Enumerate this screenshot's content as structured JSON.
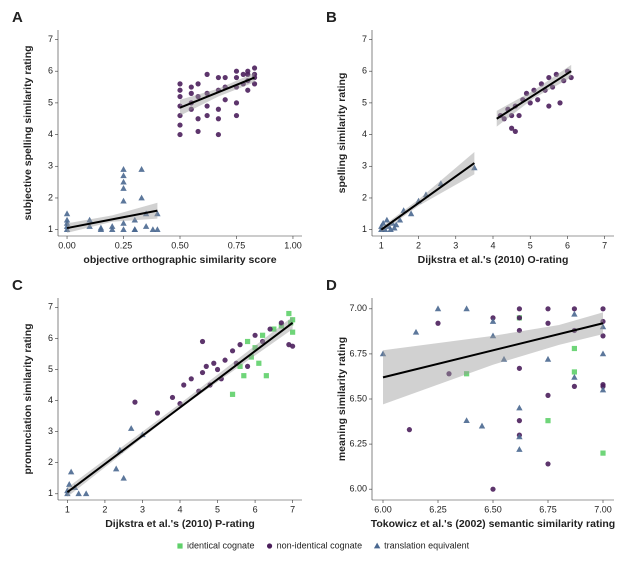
{
  "chart_data": [
    {
      "type": "scatter",
      "label": "A",
      "xlabel": "objective orthographic similarity score",
      "ylabel": "subjective spelling similarity rating",
      "xlim": [
        -0.04,
        1.04
      ],
      "ylim": [
        0.8,
        7.3
      ],
      "xticks": [
        {
          "value": 0,
          "label": "0.00"
        },
        0.25,
        {
          "value": 0.5,
          "label": "0.50"
        },
        0.75,
        {
          "value": 1,
          "label": "1.00"
        }
      ],
      "yticks": [
        1,
        2,
        3,
        4,
        5,
        6,
        7
      ],
      "series": [
        {
          "color": "#4a6890",
          "marker": "triangle",
          "x": [
            0,
            0,
            0,
            0,
            0,
            0.1,
            0.1,
            0.15,
            0.15,
            0.2,
            0.2,
            0.25,
            0.25,
            0.25,
            0.25,
            0.25,
            0.25,
            0.25,
            0.3,
            0.3,
            0.3,
            0.33,
            0.33,
            0.35,
            0.35,
            0.38,
            0.4,
            0.4
          ],
          "y": [
            1.0,
            1.1,
            1.2,
            1.3,
            1.5,
            1.1,
            1.3,
            1.0,
            1.05,
            1.0,
            1.1,
            1.0,
            2.9,
            2.7,
            2.5,
            2.3,
            1.9,
            1.2,
            1.0,
            1.0,
            1.3,
            2.0,
            2.9,
            1.1,
            1.5,
            1.0,
            1.0,
            1.5
          ]
        },
        {
          "color": "#4b1f5c",
          "marker": "circle",
          "x": [
            0.5,
            0.5,
            0.5,
            0.5,
            0.5,
            0.5,
            0.5,
            0.55,
            0.55,
            0.55,
            0.55,
            0.58,
            0.58,
            0.58,
            0.58,
            0.62,
            0.62,
            0.62,
            0.62,
            0.67,
            0.67,
            0.67,
            0.67,
            0.67,
            0.7,
            0.7,
            0.7,
            0.75,
            0.75,
            0.75,
            0.75,
            0.75,
            0.78,
            0.78,
            0.8,
            0.8,
            0.8,
            0.8,
            0.83,
            0.83,
            0.83,
            0.83
          ],
          "y": [
            4.0,
            4.3,
            4.6,
            4.9,
            5.2,
            5.4,
            5.6,
            4.8,
            5.0,
            5.3,
            5.5,
            4.1,
            4.5,
            5.2,
            5.6,
            4.6,
            4.9,
            5.3,
            5.9,
            4.0,
            4.5,
            4.8,
            5.4,
            5.8,
            5.1,
            5.5,
            5.8,
            4.6,
            5.0,
            5.5,
            5.8,
            6.0,
            5.6,
            5.9,
            5.4,
            5.7,
            5.9,
            6.0,
            5.6,
            5.8,
            5.9,
            6.1
          ]
        }
      ],
      "fits": [
        {
          "x": [
            0,
            0.4
          ],
          "y": [
            1.05,
            1.6
          ],
          "band": {
            "x": [
              0,
              0.2,
              0.4
            ],
            "lower": [
              0.9,
              1.25,
              1.35
            ],
            "upper": [
              1.2,
              1.45,
              1.85
            ]
          }
        },
        {
          "x": [
            0.5,
            0.83
          ],
          "y": [
            4.85,
            5.8
          ],
          "band": {
            "x": [
              0.5,
              0.67,
              0.83
            ],
            "lower": [
              4.6,
              5.2,
              5.65
            ],
            "upper": [
              5.1,
              5.45,
              5.95
            ]
          }
        }
      ]
    },
    {
      "type": "scatter",
      "label": "B",
      "xlabel": "Dijkstra et al.'s (2010) O-rating",
      "ylabel": "spelling similarity rating",
      "xlim": [
        0.75,
        7.25
      ],
      "ylim": [
        0.8,
        7.3
      ],
      "xticks": [
        1,
        2,
        3,
        4,
        5,
        6,
        7
      ],
      "yticks": [
        1,
        2,
        3,
        4,
        5,
        6,
        7
      ],
      "series": [
        {
          "color": "#4a6890",
          "marker": "triangle",
          "x": [
            1,
            1,
            1.05,
            1.1,
            1.15,
            1.2,
            1.25,
            1.3,
            1.35,
            1.4,
            1.5,
            1.6,
            1.8,
            2.0,
            2.2,
            2.6,
            3.5
          ],
          "y": [
            1.0,
            1.1,
            1.2,
            1.0,
            1.3,
            1.1,
            1.0,
            1.2,
            1.05,
            1.15,
            1.3,
            1.6,
            1.5,
            1.9,
            2.1,
            2.45,
            2.95
          ]
        },
        {
          "color": "#4b1f5c",
          "marker": "circle",
          "x": [
            4.2,
            4.3,
            4.4,
            4.5,
            4.5,
            4.6,
            4.7,
            4.8,
            4.9,
            5.0,
            5.1,
            5.2,
            5.3,
            5.4,
            5.5,
            5.6,
            5.7,
            5.8,
            5.9,
            6.0,
            6.1,
            5.5,
            4.6
          ],
          "y": [
            4.6,
            4.5,
            4.8,
            4.2,
            4.6,
            4.9,
            4.6,
            5.1,
            5.3,
            5.0,
            5.4,
            5.1,
            5.6,
            5.4,
            5.8,
            5.5,
            5.9,
            5.0,
            5.7,
            6.0,
            5.8,
            4.9,
            4.1
          ]
        }
      ],
      "fits": [
        {
          "x": [
            1,
            3.5
          ],
          "y": [
            1.0,
            3.1
          ],
          "band": {
            "x": [
              1,
              2,
              3.5
            ],
            "lower": [
              0.92,
              1.75,
              2.75
            ],
            "upper": [
              1.08,
              1.95,
              3.45
            ]
          }
        },
        {
          "x": [
            4.1,
            6.1
          ],
          "y": [
            4.5,
            6.0
          ],
          "band": {
            "x": [
              4.1,
              5.1,
              6.1
            ],
            "lower": [
              4.25,
              5.15,
              5.8
            ],
            "upper": [
              4.75,
              5.4,
              6.2
            ]
          }
        }
      ]
    },
    {
      "type": "scatter",
      "label": "C",
      "xlabel": "Dijkstra et al.'s (2010) P-rating",
      "ylabel": "pronunciation similarity rating",
      "xlim": [
        0.75,
        7.25
      ],
      "ylim": [
        0.8,
        7.3
      ],
      "xticks": [
        1,
        2,
        3,
        4,
        5,
        6,
        7
      ],
      "yticks": [
        1,
        2,
        3,
        4,
        5,
        6,
        7
      ],
      "series": [
        {
          "color": "#5fd06a",
          "marker": "square",
          "x": [
            5.4,
            5.6,
            5.7,
            5.8,
            5.9,
            6.0,
            6.1,
            6.2,
            6.3,
            6.5,
            6.7,
            6.9,
            7.0,
            7.0,
            6.95
          ],
          "y": [
            4.2,
            5.1,
            4.8,
            5.9,
            5.4,
            5.7,
            5.2,
            6.1,
            4.8,
            6.3,
            6.4,
            6.8,
            6.2,
            6.6,
            6.5
          ]
        },
        {
          "color": "#4b1f5c",
          "marker": "circle",
          "x": [
            2.8,
            3.4,
            3.8,
            4.0,
            4.1,
            4.3,
            4.5,
            4.6,
            4.7,
            4.8,
            4.9,
            5.0,
            5.1,
            5.2,
            5.4,
            5.5,
            5.6,
            5.8,
            6.0,
            6.2,
            6.4,
            6.7,
            6.9,
            7.0,
            4.6
          ],
          "y": [
            3.95,
            3.6,
            4.1,
            3.9,
            4.5,
            4.7,
            4.3,
            4.9,
            5.1,
            4.5,
            5.2,
            5.0,
            4.7,
            5.3,
            5.6,
            5.2,
            5.8,
            5.1,
            6.1,
            5.9,
            6.3,
            6.5,
            5.8,
            5.75,
            5.9
          ]
        },
        {
          "color": "#4a6890",
          "marker": "triangle",
          "x": [
            1,
            1,
            1.05,
            1.1,
            1.2,
            1.3,
            1.5,
            2.3,
            2.4,
            2.5,
            2.7,
            3.0
          ],
          "y": [
            1,
            1.1,
            1.3,
            1.7,
            1.2,
            1.0,
            1.0,
            1.8,
            2.4,
            1.5,
            3.1,
            2.9
          ]
        }
      ],
      "fits": [
        {
          "x": [
            1,
            7
          ],
          "y": [
            1.05,
            6.5
          ],
          "band": {
            "x": [
              1,
              4,
              7
            ],
            "lower": [
              0.9,
              3.75,
              6.3
            ],
            "upper": [
              1.2,
              3.9,
              6.7
            ]
          }
        }
      ]
    },
    {
      "type": "scatter",
      "label": "D",
      "xlabel": "Tokowicz et al.'s (2002) semantic similarity rating",
      "ylabel": "meaning similarity rating",
      "xlim": [
        5.95,
        7.05
      ],
      "ylim": [
        5.94,
        7.06
      ],
      "xticks": [
        {
          "value": 6,
          "label": "6.00"
        },
        6.25,
        {
          "value": 6.5,
          "label": "6.50"
        },
        6.75,
        {
          "value": 7,
          "label": "7.00"
        }
      ],
      "yticks": [
        {
          "value": 6,
          "label": "6.00"
        },
        6.25,
        {
          "value": 6.5,
          "label": "6.50"
        },
        6.75,
        {
          "value": 7,
          "label": "7.00"
        }
      ],
      "series": [
        {
          "color": "#5fd06a",
          "marker": "square",
          "x": [
            6.38,
            6.75,
            6.87,
            6.87,
            7.0,
            6.62
          ],
          "y": [
            6.64,
            6.38,
            6.78,
            6.65,
            6.2,
            6.95
          ]
        },
        {
          "color": "#4b1f5c",
          "marker": "circle",
          "x": [
            6.12,
            6.25,
            6.3,
            6.5,
            6.62,
            6.62,
            6.62,
            6.62,
            6.62,
            6.62,
            6.75,
            6.75,
            6.75,
            6.75,
            6.87,
            6.87,
            6.87,
            7.0,
            7.0,
            7.0,
            7.0,
            7.0,
            6.5
          ],
          "y": [
            6.33,
            6.92,
            6.64,
            6.0,
            7.0,
            6.95,
            6.88,
            6.67,
            6.38,
            6.3,
            7.0,
            6.92,
            6.14,
            6.52,
            7.0,
            6.88,
            6.57,
            7.0,
            6.93,
            6.85,
            6.58,
            6.57,
            6.95
          ]
        },
        {
          "color": "#4a6890",
          "marker": "triangle",
          "x": [
            6.0,
            6.15,
            6.25,
            6.38,
            6.38,
            6.45,
            6.5,
            6.5,
            6.55,
            6.62,
            6.62,
            6.62,
            6.75,
            6.87,
            6.87,
            7.0,
            7.0,
            7.0
          ],
          "y": [
            6.75,
            6.87,
            7.0,
            7.0,
            6.38,
            6.35,
            6.93,
            6.85,
            6.72,
            6.29,
            6.22,
            6.45,
            6.72,
            6.97,
            6.62,
            6.9,
            6.75,
            6.55
          ]
        }
      ],
      "fits": [
        {
          "x": [
            6,
            7
          ],
          "y": [
            6.62,
            6.92
          ],
          "band": {
            "x": [
              6,
              6.5,
              6.8,
              7
            ],
            "lower": [
              6.47,
              6.69,
              6.8,
              6.86
            ],
            "upper": [
              6.77,
              6.85,
              6.91,
              6.98
            ]
          }
        }
      ]
    }
  ],
  "legend": [
    {
      "name": "identical cognate",
      "color": "#5fd06a",
      "marker": "square"
    },
    {
      "name": "non-identical cognate",
      "color": "#4b1f5c",
      "marker": "circle"
    },
    {
      "name": "translation equivalent",
      "color": "#4a6890",
      "marker": "triangle"
    }
  ]
}
